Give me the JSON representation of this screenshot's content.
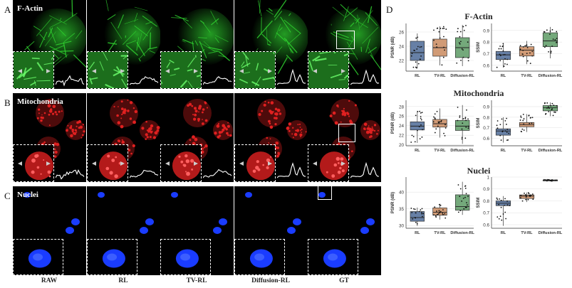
{
  "figure": {
    "panel_letters": [
      "A",
      "B",
      "C",
      "D"
    ],
    "rows": [
      {
        "id": "actin",
        "title": "F-Actin",
        "color": "#2fd02f"
      },
      {
        "id": "mito",
        "title": "Mitochondria",
        "color": "#e02020"
      },
      {
        "id": "nuclei",
        "title": "Nuclei",
        "color": "#1a3cff"
      }
    ],
    "columns": [
      "RAW",
      "RL",
      "TV-RL",
      "Diffusion-RL",
      "GT"
    ]
  },
  "colors": {
    "RL": "#4c6a96",
    "TV-RL": "#c98a5e",
    "Diffusion-RL": "#5c9a64"
  },
  "chart_data": [
    {
      "type": "box",
      "title": "F-Actin",
      "ylabel": "PSNR (dB)",
      "categories": [
        "RL",
        "TV-RL",
        "Diffusion-RL"
      ],
      "ylim": [
        20.5,
        27.2
      ],
      "yticks": [
        22,
        24,
        26
      ],
      "boxes": [
        {
          "min": 20.9,
          "q1": 22.0,
          "median": 23.1,
          "q3": 24.7,
          "max": 25.8
        },
        {
          "min": 21.3,
          "q1": 22.6,
          "median": 23.8,
          "q3": 25.0,
          "max": 26.8
        },
        {
          "min": 21.2,
          "q1": 22.4,
          "median": 23.8,
          "q3": 25.2,
          "max": 27.0
        }
      ]
    },
    {
      "type": "box",
      "title": "",
      "ylabel": "SSIM",
      "categories": [
        "RL",
        "TV-RL",
        "Diffusion-RL"
      ],
      "ylim": [
        0.55,
        0.96
      ],
      "yticks": [
        0.6,
        0.7,
        0.8,
        0.9
      ],
      "boxes": [
        {
          "min": 0.58,
          "q1": 0.65,
          "median": 0.69,
          "q3": 0.72,
          "max": 0.79
        },
        {
          "min": 0.61,
          "q1": 0.68,
          "median": 0.73,
          "q3": 0.76,
          "max": 0.81
        },
        {
          "min": 0.66,
          "q1": 0.76,
          "median": 0.81,
          "q3": 0.88,
          "max": 0.93
        }
      ]
    },
    {
      "type": "box",
      "title": "Mitochondria",
      "ylabel": "PSNR (dB)",
      "categories": [
        "RL",
        "TV-RL",
        "Diffusion-RL"
      ],
      "ylim": [
        19.8,
        29.3
      ],
      "yticks": [
        20,
        22,
        24,
        26,
        28
      ],
      "boxes": [
        {
          "min": 20.4,
          "q1": 23.1,
          "median": 23.9,
          "q3": 24.8,
          "max": 27.1
        },
        {
          "min": 21.5,
          "q1": 23.7,
          "median": 24.4,
          "q3": 25.3,
          "max": 27.6
        },
        {
          "min": 20.2,
          "q1": 23.0,
          "median": 23.9,
          "q3": 25.1,
          "max": 28.3
        }
      ]
    },
    {
      "type": "box",
      "title": "",
      "ylabel": "SSIM",
      "categories": [
        "RL",
        "TV-RL",
        "Diffusion-RL"
      ],
      "ylim": [
        0.53,
        0.96
      ],
      "yticks": [
        0.6,
        0.7,
        0.8,
        0.9
      ],
      "boxes": [
        {
          "min": 0.56,
          "q1": 0.63,
          "median": 0.67,
          "q3": 0.69,
          "max": 0.8
        },
        {
          "min": 0.66,
          "q1": 0.71,
          "median": 0.73,
          "q3": 0.75,
          "max": 0.83
        },
        {
          "min": 0.81,
          "q1": 0.86,
          "median": 0.89,
          "q3": 0.91,
          "max": 0.94
        }
      ]
    },
    {
      "type": "box",
      "title": "Nuclei",
      "ylabel": "PSNR (dB)",
      "categories": [
        "RL",
        "TV-RL",
        "Diffusion-RL"
      ],
      "ylim": [
        29.2,
        44.5
      ],
      "yticks": [
        30,
        35,
        40
      ],
      "boxes": [
        {
          "min": 29.9,
          "q1": 31.3,
          "median": 32.4,
          "q3": 34.2,
          "max": 35.4
        },
        {
          "min": 31.8,
          "q1": 33.1,
          "median": 34.0,
          "q3": 35.3,
          "max": 36.5
        },
        {
          "min": 33.2,
          "q1": 34.6,
          "median": 35.7,
          "q3": 39.2,
          "max": 43.1
        }
      ]
    },
    {
      "type": "box",
      "title": "",
      "ylabel": "SSIM",
      "categories": [
        "RL",
        "TV-RL",
        "Diffusion-RL"
      ],
      "ylim": [
        0.57,
        1.0
      ],
      "yticks": [
        0.6,
        0.7,
        0.8,
        0.9,
        1.0
      ],
      "boxes": [
        {
          "min": 0.59,
          "q1": 0.76,
          "median": 0.78,
          "q3": 0.8,
          "max": 0.84
        },
        {
          "min": 0.79,
          "q1": 0.82,
          "median": 0.84,
          "q3": 0.85,
          "max": 0.87
        },
        {
          "min": 0.965,
          "q1": 0.968,
          "median": 0.972,
          "q3": 0.976,
          "max": 0.979
        }
      ]
    }
  ]
}
